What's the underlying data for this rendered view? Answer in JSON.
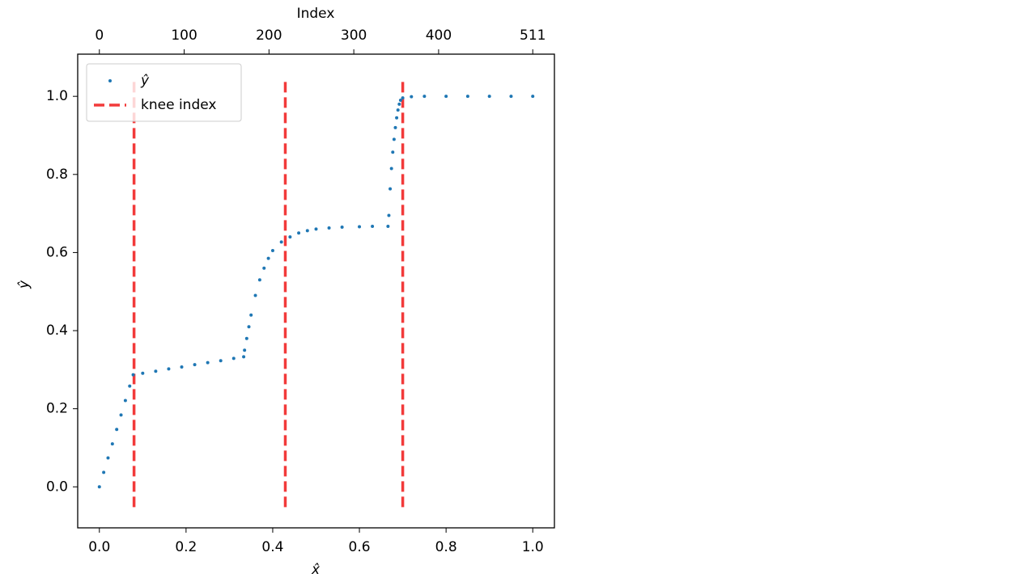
{
  "chart_data": {
    "type": "scatter",
    "xlabel": "x̂",
    "ylabel": "ŷ",
    "x2label": "Index",
    "xlim": [
      -0.05,
      1.05
    ],
    "ylim": [
      -0.105,
      1.108
    ],
    "x2lim": [
      -25.55,
      536.55
    ],
    "xticks": [
      {
        "value": 0,
        "label": "0.0"
      },
      {
        "value": 0.2,
        "label": "0.2"
      },
      {
        "value": 0.4,
        "label": "0.4"
      },
      {
        "value": 0.6,
        "label": "0.6"
      },
      {
        "value": 0.8,
        "label": "0.8"
      },
      {
        "value": 1,
        "label": "1.0"
      }
    ],
    "yticks": [
      {
        "value": 0,
        "label": "0.0"
      },
      {
        "value": 0.2,
        "label": "0.2"
      },
      {
        "value": 0.4,
        "label": "0.4"
      },
      {
        "value": 0.6,
        "label": "0.6"
      },
      {
        "value": 0.8,
        "label": "0.8"
      },
      {
        "value": 1,
        "label": "1.0"
      }
    ],
    "x2ticks": [
      0,
      100,
      200,
      300,
      400,
      511
    ],
    "legend": "upper left",
    "series": [
      {
        "name": "ŷ",
        "color": "#1f77b4",
        "x": [
          0,
          0.01,
          0.02,
          0.03,
          0.04,
          0.05,
          0.06,
          0.07,
          0.078,
          0.1,
          0.13,
          0.16,
          0.19,
          0.22,
          0.25,
          0.28,
          0.31,
          0.333,
          0.335,
          0.34,
          0.345,
          0.35,
          0.36,
          0.37,
          0.38,
          0.39,
          0.4,
          0.42,
          0.44,
          0.46,
          0.48,
          0.5,
          0.53,
          0.56,
          0.6,
          0.63,
          0.666,
          0.668,
          0.671,
          0.674,
          0.677,
          0.68,
          0.683,
          0.686,
          0.689,
          0.692,
          0.695,
          0.7,
          0.72,
          0.75,
          0.8,
          0.85,
          0.9,
          0.95,
          1.0
        ],
        "values": [
          0,
          0.037,
          0.074,
          0.11,
          0.147,
          0.184,
          0.221,
          0.258,
          0.287,
          0.291,
          0.296,
          0.302,
          0.307,
          0.313,
          0.318,
          0.323,
          0.329,
          0.333,
          0.35,
          0.38,
          0.41,
          0.44,
          0.49,
          0.53,
          0.56,
          0.585,
          0.605,
          0.627,
          0.64,
          0.65,
          0.656,
          0.66,
          0.663,
          0.665,
          0.666,
          0.667,
          0.667,
          0.695,
          0.763,
          0.815,
          0.857,
          0.89,
          0.92,
          0.945,
          0.965,
          0.98,
          0.99,
          0.996,
          0.999,
          1.0,
          1.0,
          1.0,
          1.0,
          1.0,
          1.0
        ]
      }
    ],
    "knee_lines": {
      "name": "knee index",
      "color": "#f23a3a",
      "x": [
        0.08,
        0.429,
        0.7
      ],
      "ymin": -0.052,
      "ymax": 1.046
    }
  }
}
